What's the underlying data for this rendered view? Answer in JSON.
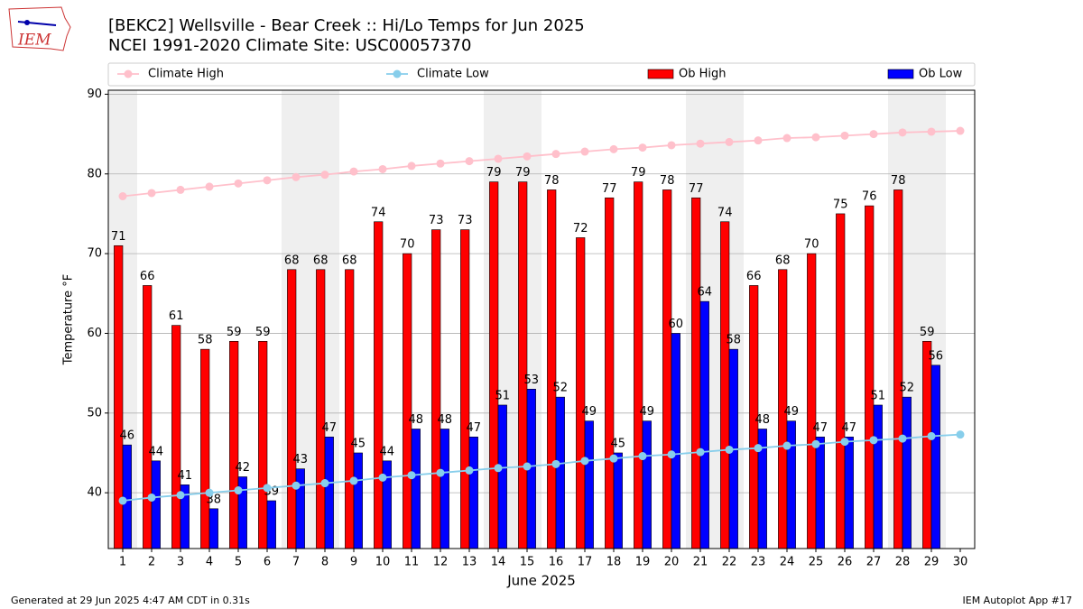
{
  "chart_data": {
    "type": "bar",
    "title": "[BEKC2] Wellsville - Bear Creek :: Hi/Lo Temps for Jun 2025",
    "subtitle": "NCEI 1991-2020 Climate Site: USC00057370",
    "xlabel": "June 2025",
    "ylabel": "Temperature °F",
    "logo": "IEM",
    "footer_left": "Generated at 29 Jun 2025 4:47 AM CDT in 0.31s",
    "footer_right": "IEM Autoplot App #17",
    "x": [
      1,
      2,
      3,
      4,
      5,
      6,
      7,
      8,
      9,
      10,
      11,
      12,
      13,
      14,
      15,
      16,
      17,
      18,
      19,
      20,
      21,
      22,
      23,
      24,
      25,
      26,
      27,
      28,
      29,
      30
    ],
    "highlight_days": [
      1,
      7,
      8,
      14,
      15,
      21,
      22,
      28,
      29
    ],
    "highlight_color": "#efefef",
    "xlim": [
      0.5,
      30.5
    ],
    "xticks": [
      1,
      2,
      3,
      4,
      5,
      6,
      7,
      8,
      9,
      10,
      11,
      12,
      13,
      14,
      15,
      16,
      17,
      18,
      19,
      20,
      21,
      22,
      23,
      24,
      25,
      26,
      27,
      28,
      29,
      30
    ],
    "ylim": [
      33,
      90.5
    ],
    "yticks": [
      40,
      50,
      60,
      70,
      80,
      90
    ],
    "grid": true,
    "legend": "top",
    "series": [
      {
        "name": "Climate High",
        "type": "line",
        "color": "#ffc0cb",
        "values": [
          77.2,
          77.6,
          78.0,
          78.4,
          78.8,
          79.2,
          79.6,
          79.9,
          80.3,
          80.6,
          81.0,
          81.3,
          81.6,
          81.9,
          82.2,
          82.5,
          82.8,
          83.1,
          83.3,
          83.6,
          83.8,
          84.0,
          84.2,
          84.5,
          84.6,
          84.8,
          85.0,
          85.2,
          85.3,
          85.4
        ]
      },
      {
        "name": "Climate Low",
        "type": "line",
        "color": "#87ceeb",
        "values": [
          39.0,
          39.4,
          39.7,
          40.0,
          40.3,
          40.6,
          40.9,
          41.2,
          41.5,
          41.9,
          42.2,
          42.5,
          42.8,
          43.1,
          43.3,
          43.6,
          44.0,
          44.3,
          44.6,
          44.8,
          45.1,
          45.4,
          45.6,
          45.9,
          46.1,
          46.4,
          46.6,
          46.8,
          47.1,
          47.3
        ]
      },
      {
        "name": "Ob High",
        "type": "bar",
        "color": "#ff0000",
        "offset": -1,
        "values": [
          71,
          66,
          61,
          58,
          59,
          59,
          68,
          68,
          68,
          74,
          70,
          73,
          73,
          79,
          79,
          78,
          72,
          77,
          79,
          78,
          77,
          74,
          66,
          68,
          70,
          75,
          76,
          78,
          59,
          null
        ]
      },
      {
        "name": "Ob Low",
        "type": "bar",
        "color": "#0000ff",
        "offset": 0,
        "values": [
          46,
          44,
          41,
          38,
          42,
          39,
          43,
          47,
          45,
          44,
          48,
          48,
          47,
          51,
          53,
          52,
          49,
          45,
          49,
          60,
          64,
          58,
          48,
          49,
          47,
          47,
          51,
          52,
          56,
          null
        ]
      }
    ]
  }
}
